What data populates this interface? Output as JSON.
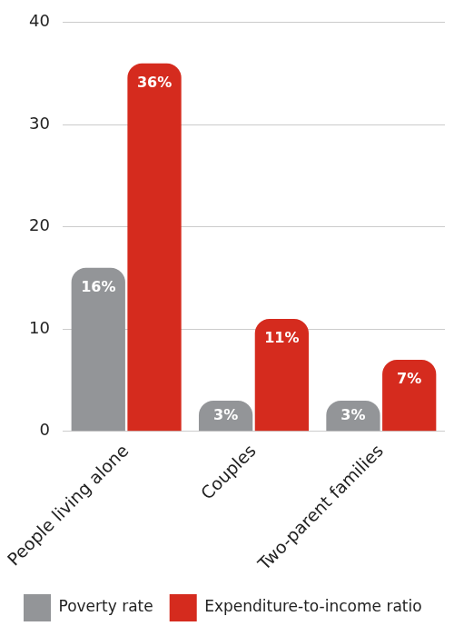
{
  "chart_data": {
    "type": "bar",
    "categories": [
      "People living alone",
      "Couples",
      "Two-parent families"
    ],
    "series": [
      {
        "name": "Poverty rate",
        "color": "#939598",
        "values": [
          16,
          3,
          3
        ],
        "value_labels": [
          "16%",
          "3%",
          "3%"
        ]
      },
      {
        "name": "Expenditure-to-income ratio",
        "color": "#d52b1e",
        "values": [
          36,
          11,
          7
        ],
        "value_labels": [
          "36%",
          "11%",
          "7%"
        ]
      }
    ],
    "ylim": [
      0,
      40
    ],
    "yticks": [
      0,
      10,
      20,
      30,
      40
    ],
    "grid": true,
    "legend": "bottom",
    "data_labels": true
  }
}
